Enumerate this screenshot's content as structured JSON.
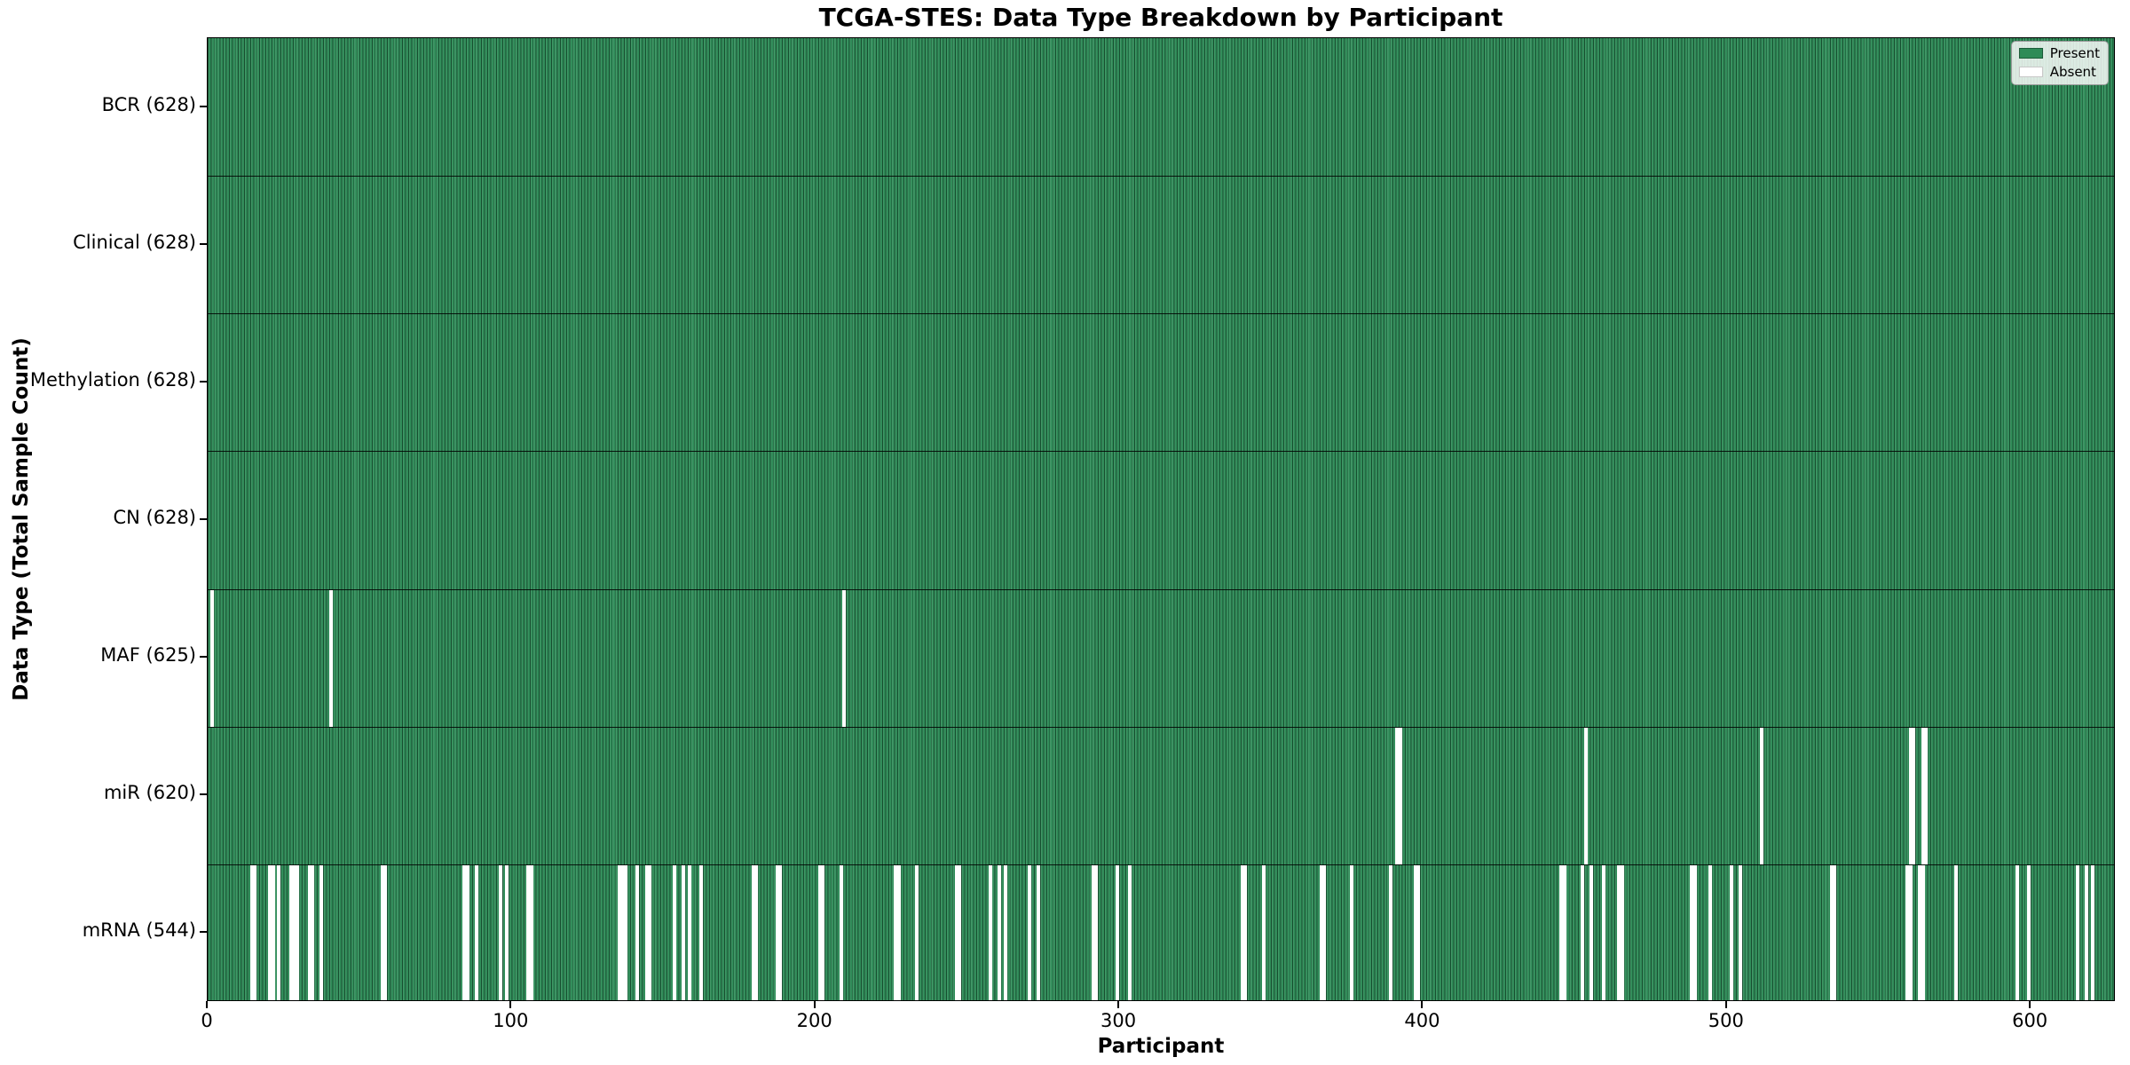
{
  "figure": {
    "title": "TCGA-STES: Data Type Breakdown by Participant",
    "xlabel": "Participant",
    "ylabel": "Data Type (Total Sample Count)"
  },
  "colors": {
    "present": "#2e8b57",
    "absent": "#ffffff",
    "bar_edge": "#123a23",
    "spine": "#000000",
    "legend_bg": "rgba(255,255,255,0.82)"
  },
  "chart_data": {
    "type": "heatmap",
    "subtype": "presence-absence-matrix",
    "title": "TCGA-STES: Data Type Breakdown by Participant",
    "xlabel": "Participant",
    "ylabel": "Data Type (Total Sample Count)",
    "n_participants": 628,
    "x_axis": {
      "min": 0,
      "max": 628,
      "ticks": [
        0,
        100,
        200,
        300,
        400,
        500,
        600
      ]
    },
    "grid": false,
    "legend_position": "upper right",
    "legend": [
      {
        "label": "Present",
        "color": "#2e8b57"
      },
      {
        "label": "Absent",
        "color": "#ffffff"
      }
    ],
    "rows": [
      {
        "data_type": "BCR",
        "label": "BCR (628)",
        "present_count": 628,
        "absent_count": 0,
        "absent_participants": []
      },
      {
        "data_type": "Clinical",
        "label": "Clinical (628)",
        "present_count": 628,
        "absent_count": 0,
        "absent_participants": []
      },
      {
        "data_type": "Methylation",
        "label": "Methylation (628)",
        "present_count": 628,
        "absent_count": 0,
        "absent_participants": []
      },
      {
        "data_type": "CN",
        "label": "CN (628)",
        "present_count": 628,
        "absent_count": 0,
        "absent_participants": []
      },
      {
        "data_type": "MAF",
        "label": "MAF (625)",
        "present_count": 625,
        "absent_count": 3,
        "absent_participants": [
          1,
          40,
          209
        ]
      },
      {
        "data_type": "miR",
        "label": "miR (620)",
        "present_count": 620,
        "absent_count": 8,
        "absent_participants": [
          391,
          392,
          453,
          511,
          560,
          561,
          564,
          565
        ]
      },
      {
        "data_type": "mRNA",
        "label": "mRNA (544)",
        "present_count": 544,
        "absent_count": 84,
        "absent_participants": [
          14,
          15,
          20,
          21,
          23,
          27,
          28,
          29,
          33,
          34,
          37,
          57,
          58,
          84,
          85,
          88,
          96,
          98,
          105,
          106,
          135,
          136,
          137,
          141,
          144,
          145,
          153,
          156,
          158,
          162,
          179,
          180,
          187,
          188,
          201,
          202,
          208,
          226,
          227,
          233,
          246,
          247,
          257,
          260,
          262,
          270,
          273,
          291,
          292,
          299,
          303,
          340,
          341,
          347,
          366,
          367,
          376,
          389,
          397,
          398,
          445,
          446,
          452,
          455,
          459,
          464,
          465,
          488,
          489,
          494,
          501,
          504,
          534,
          535,
          559,
          560,
          563,
          564,
          575,
          595,
          599,
          615,
          618,
          620
        ]
      }
    ]
  }
}
